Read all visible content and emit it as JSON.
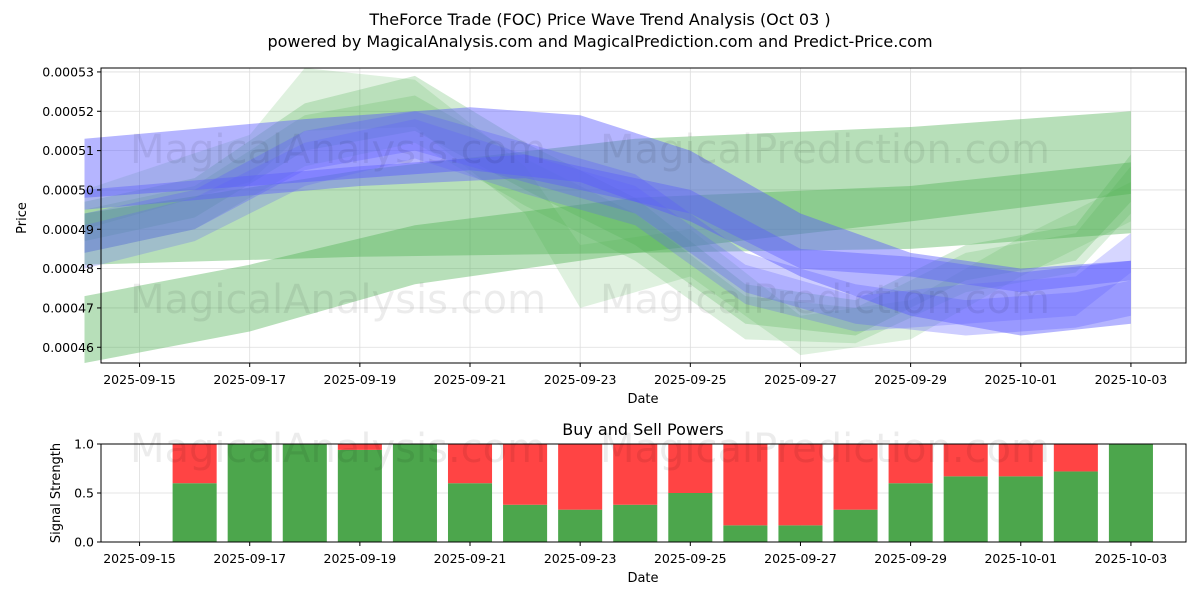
{
  "header": {
    "title": "TheForce Trade (FOC) Price Wave Trend Analysis (Oct 03 )",
    "subtitle": "powered by MagicalAnalysis.com and MagicalPrediction.com and Predict-Price.com"
  },
  "watermarks": [
    "MagicalAnalysis.com",
    "MagicalPrediction.com"
  ],
  "colors": {
    "green_band": "#4caf50",
    "blue_band": "#5b5bff",
    "buy": "#4ca64c",
    "sell": "#ff4444",
    "grid": "#dddddd"
  },
  "chart_data": [
    {
      "type": "area",
      "title": "",
      "xlabel": "Date",
      "ylabel": "Price",
      "ylim": [
        0.000456,
        0.000531
      ],
      "xlim": [
        "2025-09-14.3",
        "2025-10-04.0"
      ],
      "grid": true,
      "yticks": [
        "0.00046",
        "0.00047",
        "0.00048",
        "0.00049",
        "0.00050",
        "0.00051",
        "0.00052",
        "0.00053"
      ],
      "xticks": [
        "2025-09-15",
        "2025-09-17",
        "2025-09-19",
        "2025-09-21",
        "2025-09-23",
        "2025-09-25",
        "2025-09-27",
        "2025-09-29",
        "2025-10-01",
        "2025-10-03"
      ],
      "bands": [
        {
          "name": "green-wide-upper",
          "color": "green",
          "opacity": 0.4,
          "points": [
            {
              "x": "2025-09-14",
              "lo": 0.000481,
              "hi": 0.000494
            },
            {
              "x": "2025-09-19",
              "lo": 0.000483,
              "hi": 0.000505
            },
            {
              "x": "2025-09-24",
              "lo": 0.000484,
              "hi": 0.000513
            },
            {
              "x": "2025-09-29",
              "lo": 0.000485,
              "hi": 0.000516
            },
            {
              "x": "2025-10-03",
              "lo": 0.000489,
              "hi": 0.00052
            }
          ]
        },
        {
          "name": "green-wide-lower",
          "color": "green",
          "opacity": 0.4,
          "points": [
            {
              "x": "2025-09-14",
              "lo": 0.000456,
              "hi": 0.000473
            },
            {
              "x": "2025-09-17",
              "lo": 0.000464,
              "hi": 0.000481
            },
            {
              "x": "2025-09-20",
              "lo": 0.000476,
              "hi": 0.000491
            },
            {
              "x": "2025-09-24",
              "lo": 0.000484,
              "hi": 0.000498
            },
            {
              "x": "2025-09-29",
              "lo": 0.000492,
              "hi": 0.000501
            },
            {
              "x": "2025-10-03",
              "lo": 0.000499,
              "hi": 0.000507
            }
          ]
        },
        {
          "name": "green-wave-a",
          "color": "green",
          "opacity": 0.25,
          "points": [
            {
              "x": "2025-09-14",
              "lo": 0.000487,
              "hi": 0.000497
            },
            {
              "x": "2025-09-16",
              "lo": 0.000493,
              "hi": 0.000503
            },
            {
              "x": "2025-09-18",
              "lo": 0.00051,
              "hi": 0.000522
            },
            {
              "x": "2025-09-20",
              "lo": 0.000515,
              "hi": 0.000529
            },
            {
              "x": "2025-09-22",
              "lo": 0.0005,
              "hi": 0.000512
            },
            {
              "x": "2025-09-24",
              "lo": 0.000486,
              "hi": 0.000498
            },
            {
              "x": "2025-09-26",
              "lo": 0.000466,
              "hi": 0.000476
            },
            {
              "x": "2025-09-28",
              "lo": 0.000463,
              "hi": 0.000472
            },
            {
              "x": "2025-09-30",
              "lo": 0.000477,
              "hi": 0.000486
            },
            {
              "x": "2025-10-02",
              "lo": 0.000482,
              "hi": 0.000491
            },
            {
              "x": "2025-10-03",
              "lo": 0.000497,
              "hi": 0.000509
            }
          ]
        },
        {
          "name": "green-wave-b",
          "color": "green",
          "opacity": 0.2,
          "points": [
            {
              "x": "2025-09-14",
              "lo": 0.000484,
              "hi": 0.000495
            },
            {
              "x": "2025-09-16",
              "lo": 0.00049,
              "hi": 0.000501
            },
            {
              "x": "2025-09-18",
              "lo": 0.000506,
              "hi": 0.000519
            },
            {
              "x": "2025-09-20",
              "lo": 0.000512,
              "hi": 0.000524
            },
            {
              "x": "2025-09-22",
              "lo": 0.000496,
              "hi": 0.000508
            },
            {
              "x": "2025-09-24",
              "lo": 0.000482,
              "hi": 0.000494
            },
            {
              "x": "2025-09-26",
              "lo": 0.000462,
              "hi": 0.000473
            },
            {
              "x": "2025-09-28",
              "lo": 0.000461,
              "hi": 0.00047
            },
            {
              "x": "2025-09-30",
              "lo": 0.000474,
              "hi": 0.000484
            },
            {
              "x": "2025-10-02",
              "lo": 0.000479,
              "hi": 0.000489
            },
            {
              "x": "2025-10-03",
              "lo": 0.000494,
              "hi": 0.000506
            }
          ]
        },
        {
          "name": "green-wave-c",
          "color": "green",
          "opacity": 0.18,
          "points": [
            {
              "x": "2025-09-14",
              "lo": 0.00049,
              "hi": 0.0005
            },
            {
              "x": "2025-09-17",
              "lo": 0.000502,
              "hi": 0.000514
            },
            {
              "x": "2025-09-18",
              "lo": 0.000515,
              "hi": 0.000531
            },
            {
              "x": "2025-09-20",
              "lo": 0.000516,
              "hi": 0.000528
            },
            {
              "x": "2025-09-22",
              "lo": 0.000494,
              "hi": 0.000506
            },
            {
              "x": "2025-09-23",
              "lo": 0.00047,
              "hi": 0.000486
            },
            {
              "x": "2025-09-25",
              "lo": 0.000478,
              "hi": 0.00049
            },
            {
              "x": "2025-09-27",
              "lo": 0.000458,
              "hi": 0.000468
            },
            {
              "x": "2025-09-29",
              "lo": 0.000462,
              "hi": 0.000472
            },
            {
              "x": "2025-10-01",
              "lo": 0.000478,
              "hi": 0.000488
            },
            {
              "x": "2025-10-03",
              "lo": 0.000492,
              "hi": 0.000502
            }
          ]
        },
        {
          "name": "blue-wide",
          "color": "blue",
          "opacity": 0.45,
          "points": [
            {
              "x": "2025-09-14",
              "lo": 0.000498,
              "hi": 0.000513
            },
            {
              "x": "2025-09-18",
              "lo": 0.000502,
              "hi": 0.000518
            },
            {
              "x": "2025-09-21",
              "lo": 0.000505,
              "hi": 0.000521
            },
            {
              "x": "2025-09-23",
              "lo": 0.000502,
              "hi": 0.000519
            },
            {
              "x": "2025-09-25",
              "lo": 0.000492,
              "hi": 0.00051
            },
            {
              "x": "2025-09-27",
              "lo": 0.000478,
              "hi": 0.000494
            },
            {
              "x": "2025-09-29",
              "lo": 0.000468,
              "hi": 0.000484
            },
            {
              "x": "2025-10-01",
              "lo": 0.000463,
              "hi": 0.00048
            },
            {
              "x": "2025-10-03",
              "lo": 0.000466,
              "hi": 0.000482
            }
          ]
        },
        {
          "name": "blue-narrow",
          "color": "blue",
          "opacity": 0.4,
          "points": [
            {
              "x": "2025-09-14",
              "lo": 0.000495,
              "hi": 0.0005
            },
            {
              "x": "2025-09-19",
              "lo": 0.000501,
              "hi": 0.000506
            },
            {
              "x": "2025-09-22",
              "lo": 0.000503,
              "hi": 0.000509
            },
            {
              "x": "2025-09-25",
              "lo": 0.000494,
              "hi": 0.0005
            },
            {
              "x": "2025-09-27",
              "lo": 0.00048,
              "hi": 0.000485
            },
            {
              "x": "2025-09-29",
              "lo": 0.000478,
              "hi": 0.000483
            },
            {
              "x": "2025-10-01",
              "lo": 0.000474,
              "hi": 0.000479
            },
            {
              "x": "2025-10-03",
              "lo": 0.000477,
              "hi": 0.000482
            }
          ]
        },
        {
          "name": "blue-wave-a",
          "color": "blue",
          "opacity": 0.3,
          "points": [
            {
              "x": "2025-09-14",
              "lo": 0.000484,
              "hi": 0.000494
            },
            {
              "x": "2025-09-16",
              "lo": 0.00049,
              "hi": 0.0005
            },
            {
              "x": "2025-09-18",
              "lo": 0.000505,
              "hi": 0.000515
            },
            {
              "x": "2025-09-20",
              "lo": 0.00051,
              "hi": 0.00052
            },
            {
              "x": "2025-09-22",
              "lo": 0.000502,
              "hi": 0.000512
            },
            {
              "x": "2025-09-24",
              "lo": 0.000494,
              "hi": 0.000504
            },
            {
              "x": "2025-09-26",
              "lo": 0.000474,
              "hi": 0.000484
            },
            {
              "x": "2025-09-28",
              "lo": 0.000466,
              "hi": 0.000476
            },
            {
              "x": "2025-09-30",
              "lo": 0.000463,
              "hi": 0.000472
            },
            {
              "x": "2025-10-02",
              "lo": 0.000465,
              "hi": 0.000474
            },
            {
              "x": "2025-10-03",
              "lo": 0.000468,
              "hi": 0.000477
            }
          ]
        },
        {
          "name": "blue-wave-b",
          "color": "blue",
          "opacity": 0.25,
          "points": [
            {
              "x": "2025-09-14",
              "lo": 0.00048,
              "hi": 0.000491
            },
            {
              "x": "2025-09-16",
              "lo": 0.000487,
              "hi": 0.000498
            },
            {
              "x": "2025-09-18",
              "lo": 0.000501,
              "hi": 0.000512
            },
            {
              "x": "2025-09-20",
              "lo": 0.000508,
              "hi": 0.000518
            },
            {
              "x": "2025-09-22",
              "lo": 0.000499,
              "hi": 0.000509
            },
            {
              "x": "2025-09-24",
              "lo": 0.000491,
              "hi": 0.000501
            },
            {
              "x": "2025-09-26",
              "lo": 0.000471,
              "hi": 0.000481
            },
            {
              "x": "2025-09-28",
              "lo": 0.000464,
              "hi": 0.000473
            },
            {
              "x": "2025-09-30",
              "lo": 0.000466,
              "hi": 0.000476
            },
            {
              "x": "2025-10-02",
              "lo": 0.000468,
              "hi": 0.000478
            },
            {
              "x": "2025-10-03",
              "lo": 0.000479,
              "hi": 0.000489
            }
          ]
        }
      ]
    },
    {
      "type": "bar",
      "stacked": true,
      "title": "Buy and Sell Powers",
      "xlabel": "Date",
      "ylabel": "Signal Strength",
      "ylim": [
        0,
        1
      ],
      "xlim": [
        "2025-09-14.3",
        "2025-10-04.0"
      ],
      "yticks": [
        "0.0",
        "0.5",
        "1.0"
      ],
      "xticks": [
        "2025-09-15",
        "2025-09-17",
        "2025-09-19",
        "2025-09-21",
        "2025-09-23",
        "2025-09-25",
        "2025-09-27",
        "2025-09-29",
        "2025-10-01",
        "2025-10-03"
      ],
      "categories": [
        "2025-09-16",
        "2025-09-17",
        "2025-09-18",
        "2025-09-19",
        "2025-09-20",
        "2025-09-21",
        "2025-09-22",
        "2025-09-23",
        "2025-09-24",
        "2025-09-25",
        "2025-09-26",
        "2025-09-27",
        "2025-09-28",
        "2025-09-29",
        "2025-09-30",
        "2025-10-01",
        "2025-10-02",
        "2025-10-03"
      ],
      "series": [
        {
          "name": "Buy",
          "values": [
            0.6,
            1.0,
            1.0,
            0.94,
            1.0,
            0.6,
            0.38,
            0.33,
            0.38,
            0.5,
            0.17,
            0.17,
            0.33,
            0.6,
            0.67,
            0.67,
            0.72,
            1.0
          ]
        },
        {
          "name": "Sell",
          "values": [
            0.4,
            0.0,
            0.0,
            0.06,
            0.0,
            0.4,
            0.62,
            0.67,
            0.62,
            0.5,
            0.83,
            0.83,
            0.67,
            0.4,
            0.33,
            0.33,
            0.28,
            0.0
          ]
        }
      ]
    }
  ]
}
